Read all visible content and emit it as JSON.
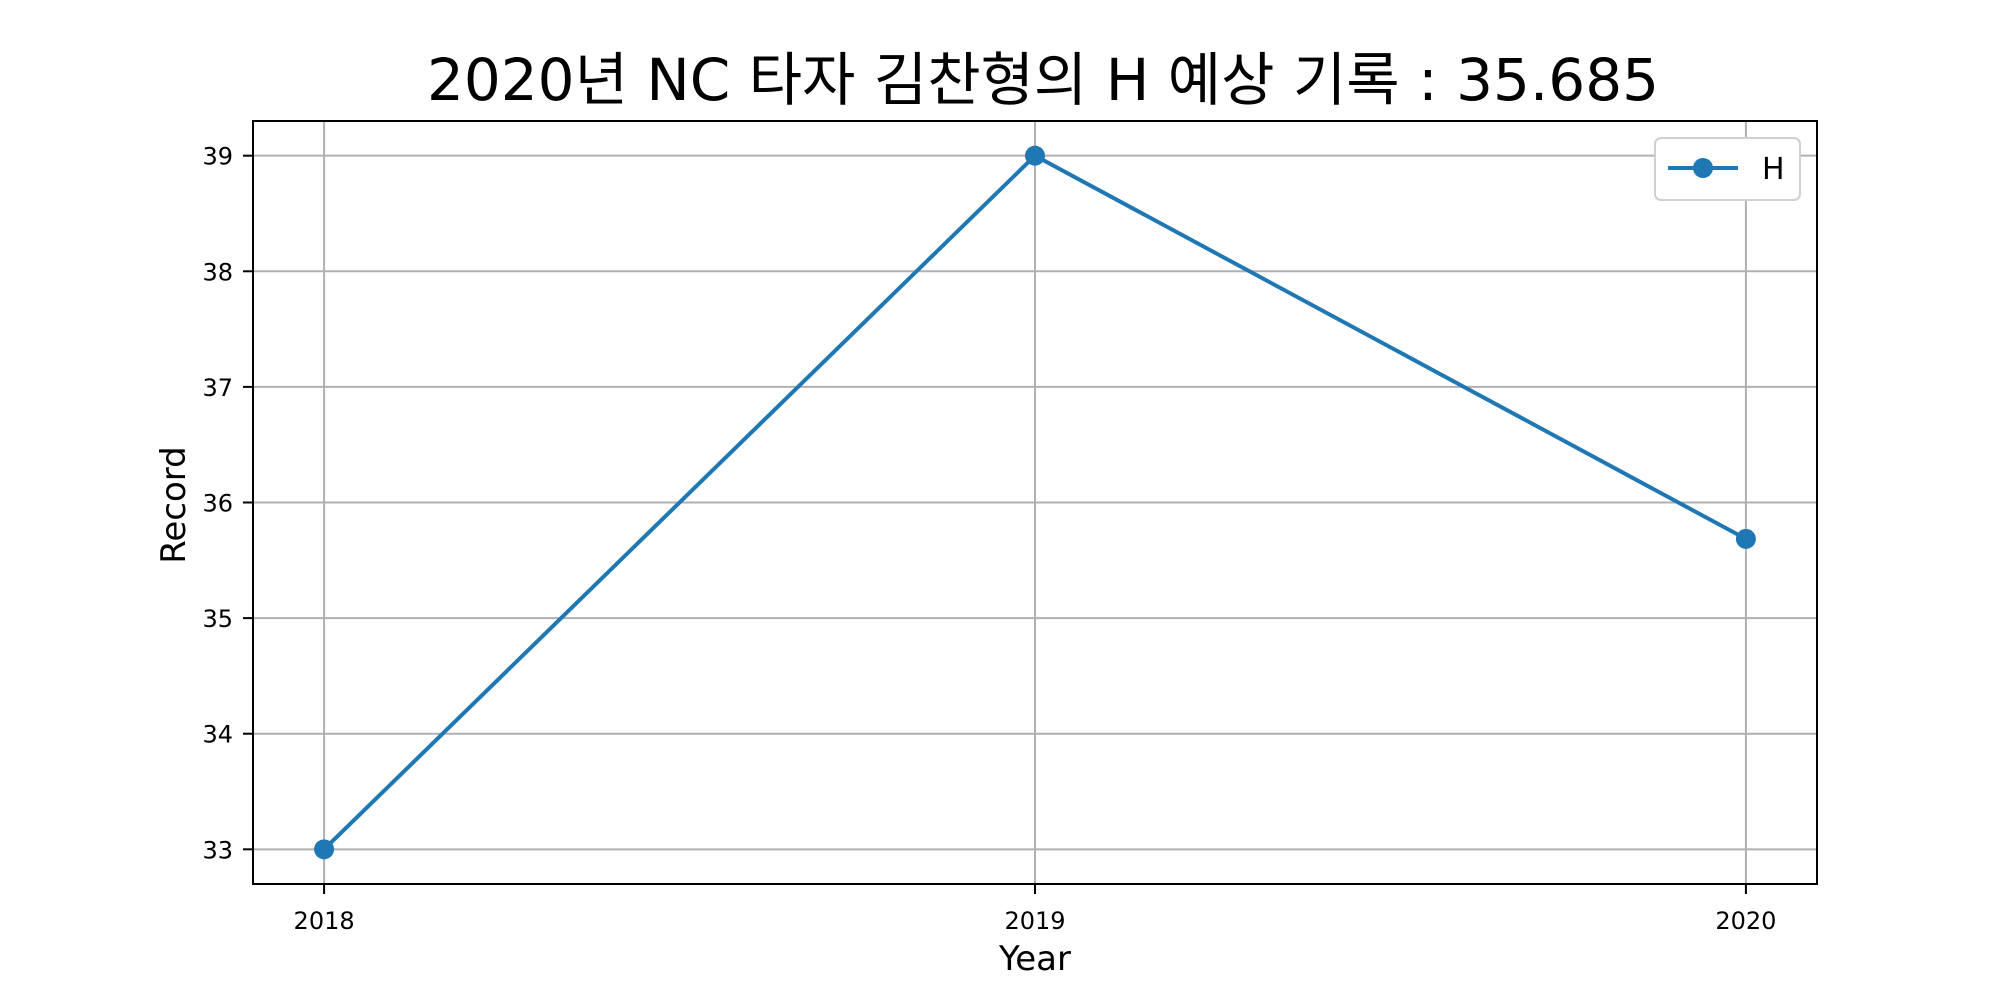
{
  "chart_data": {
    "type": "line",
    "title": "2020년 NC 타자 김찬형의 H 예상 기록 : 35.685",
    "xlabel": "Year",
    "ylabel": "Record",
    "x": [
      "2018",
      "2019",
      "2020"
    ],
    "series": [
      {
        "name": "H",
        "values": [
          33,
          39,
          35.685
        ],
        "color": "#1f77b4",
        "marker": "circle"
      }
    ],
    "xlim": [
      2017.9,
      2020.1
    ],
    "ylim": [
      32.7,
      39.3
    ],
    "yticks": [
      33,
      34,
      35,
      36,
      37,
      38,
      39
    ],
    "xticks": [
      "2018",
      "2019",
      "2020"
    ],
    "grid": true,
    "legend": "top-right",
    "colors": {
      "grid": "#b0b0b0",
      "axes": "#000000",
      "text": "#000000"
    }
  }
}
